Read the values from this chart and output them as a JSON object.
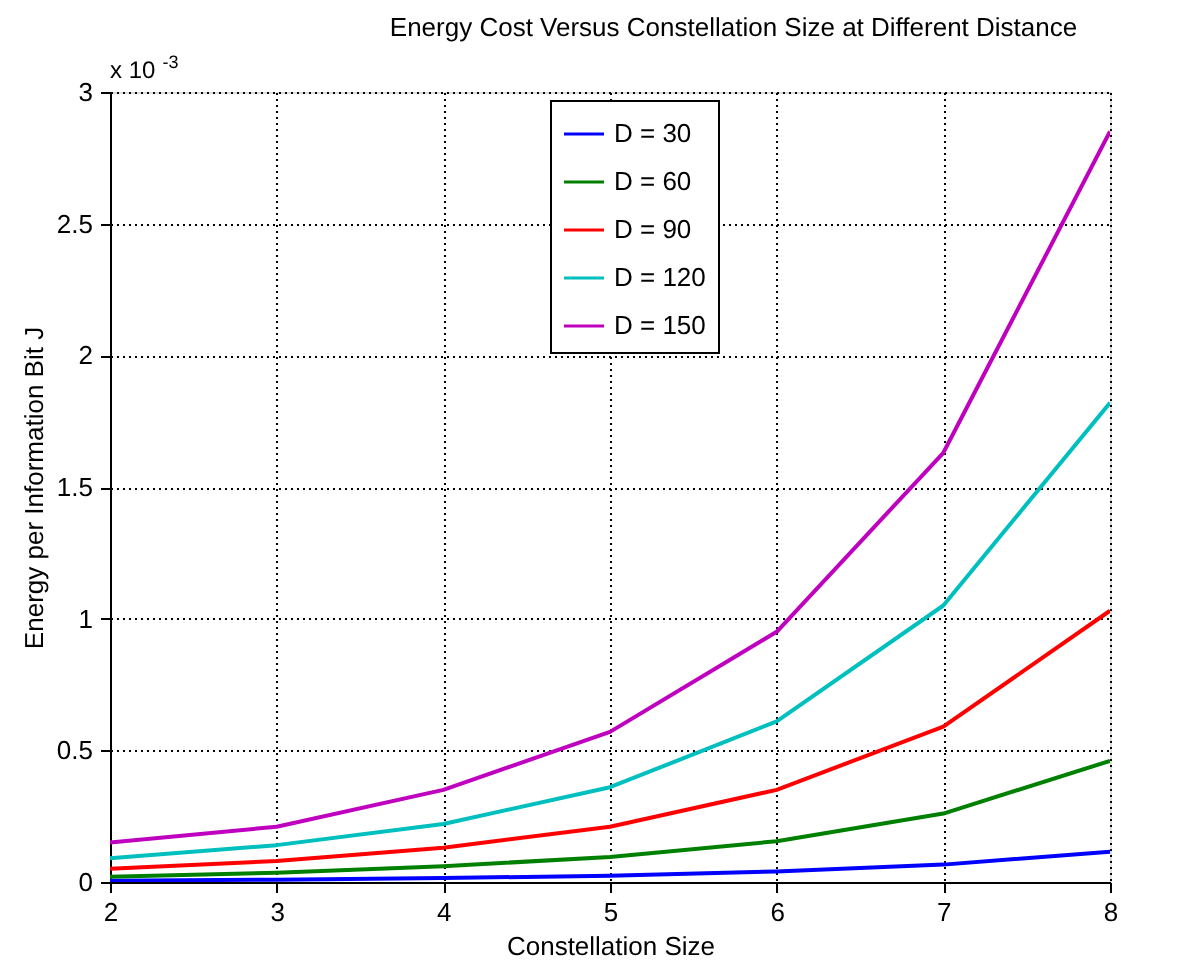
{
  "chart_data": {
    "type": "line",
    "title": "Energy Cost Versus Constellation Size at Different Distance",
    "xlabel": "Constellation  Size",
    "ylabel": "Energy per Information Bit J",
    "annotations": [
      "x 10$^{-3}$"
    ],
    "x": [
      2,
      3,
      4,
      5,
      6,
      7,
      8
    ],
    "series": [
      {
        "name": "D = 30",
        "color": "#0000ff",
        "values": [
          0.005,
          0.009,
          0.015,
          0.024,
          0.04,
          0.066,
          0.115
        ]
      },
      {
        "name": "D = 60",
        "color": "#008000",
        "values": [
          0.02,
          0.035,
          0.06,
          0.095,
          0.155,
          0.26,
          0.46
        ]
      },
      {
        "name": "D = 90",
        "color": "#ff0000",
        "values": [
          0.05,
          0.08,
          0.13,
          0.21,
          0.35,
          0.59,
          1.03
        ]
      },
      {
        "name": "D = 120",
        "color": "#00bfbf",
        "values": [
          0.09,
          0.14,
          0.22,
          0.36,
          0.61,
          1.05,
          1.82
        ]
      },
      {
        "name": "D = 150",
        "color": "#bf00bf",
        "values": [
          0.15,
          0.21,
          0.35,
          0.57,
          0.95,
          1.63,
          2.85
        ]
      }
    ],
    "xlim": [
      2,
      8
    ],
    "xticks": [
      2,
      3,
      4,
      5,
      6,
      7,
      8
    ],
    "ylim": [
      0,
      3
    ],
    "yticks": [
      0,
      0.5,
      1,
      1.5,
      2,
      2.5,
      3
    ],
    "grid": true,
    "legend": "top",
    "marker": "none",
    "line_style": "solid"
  }
}
